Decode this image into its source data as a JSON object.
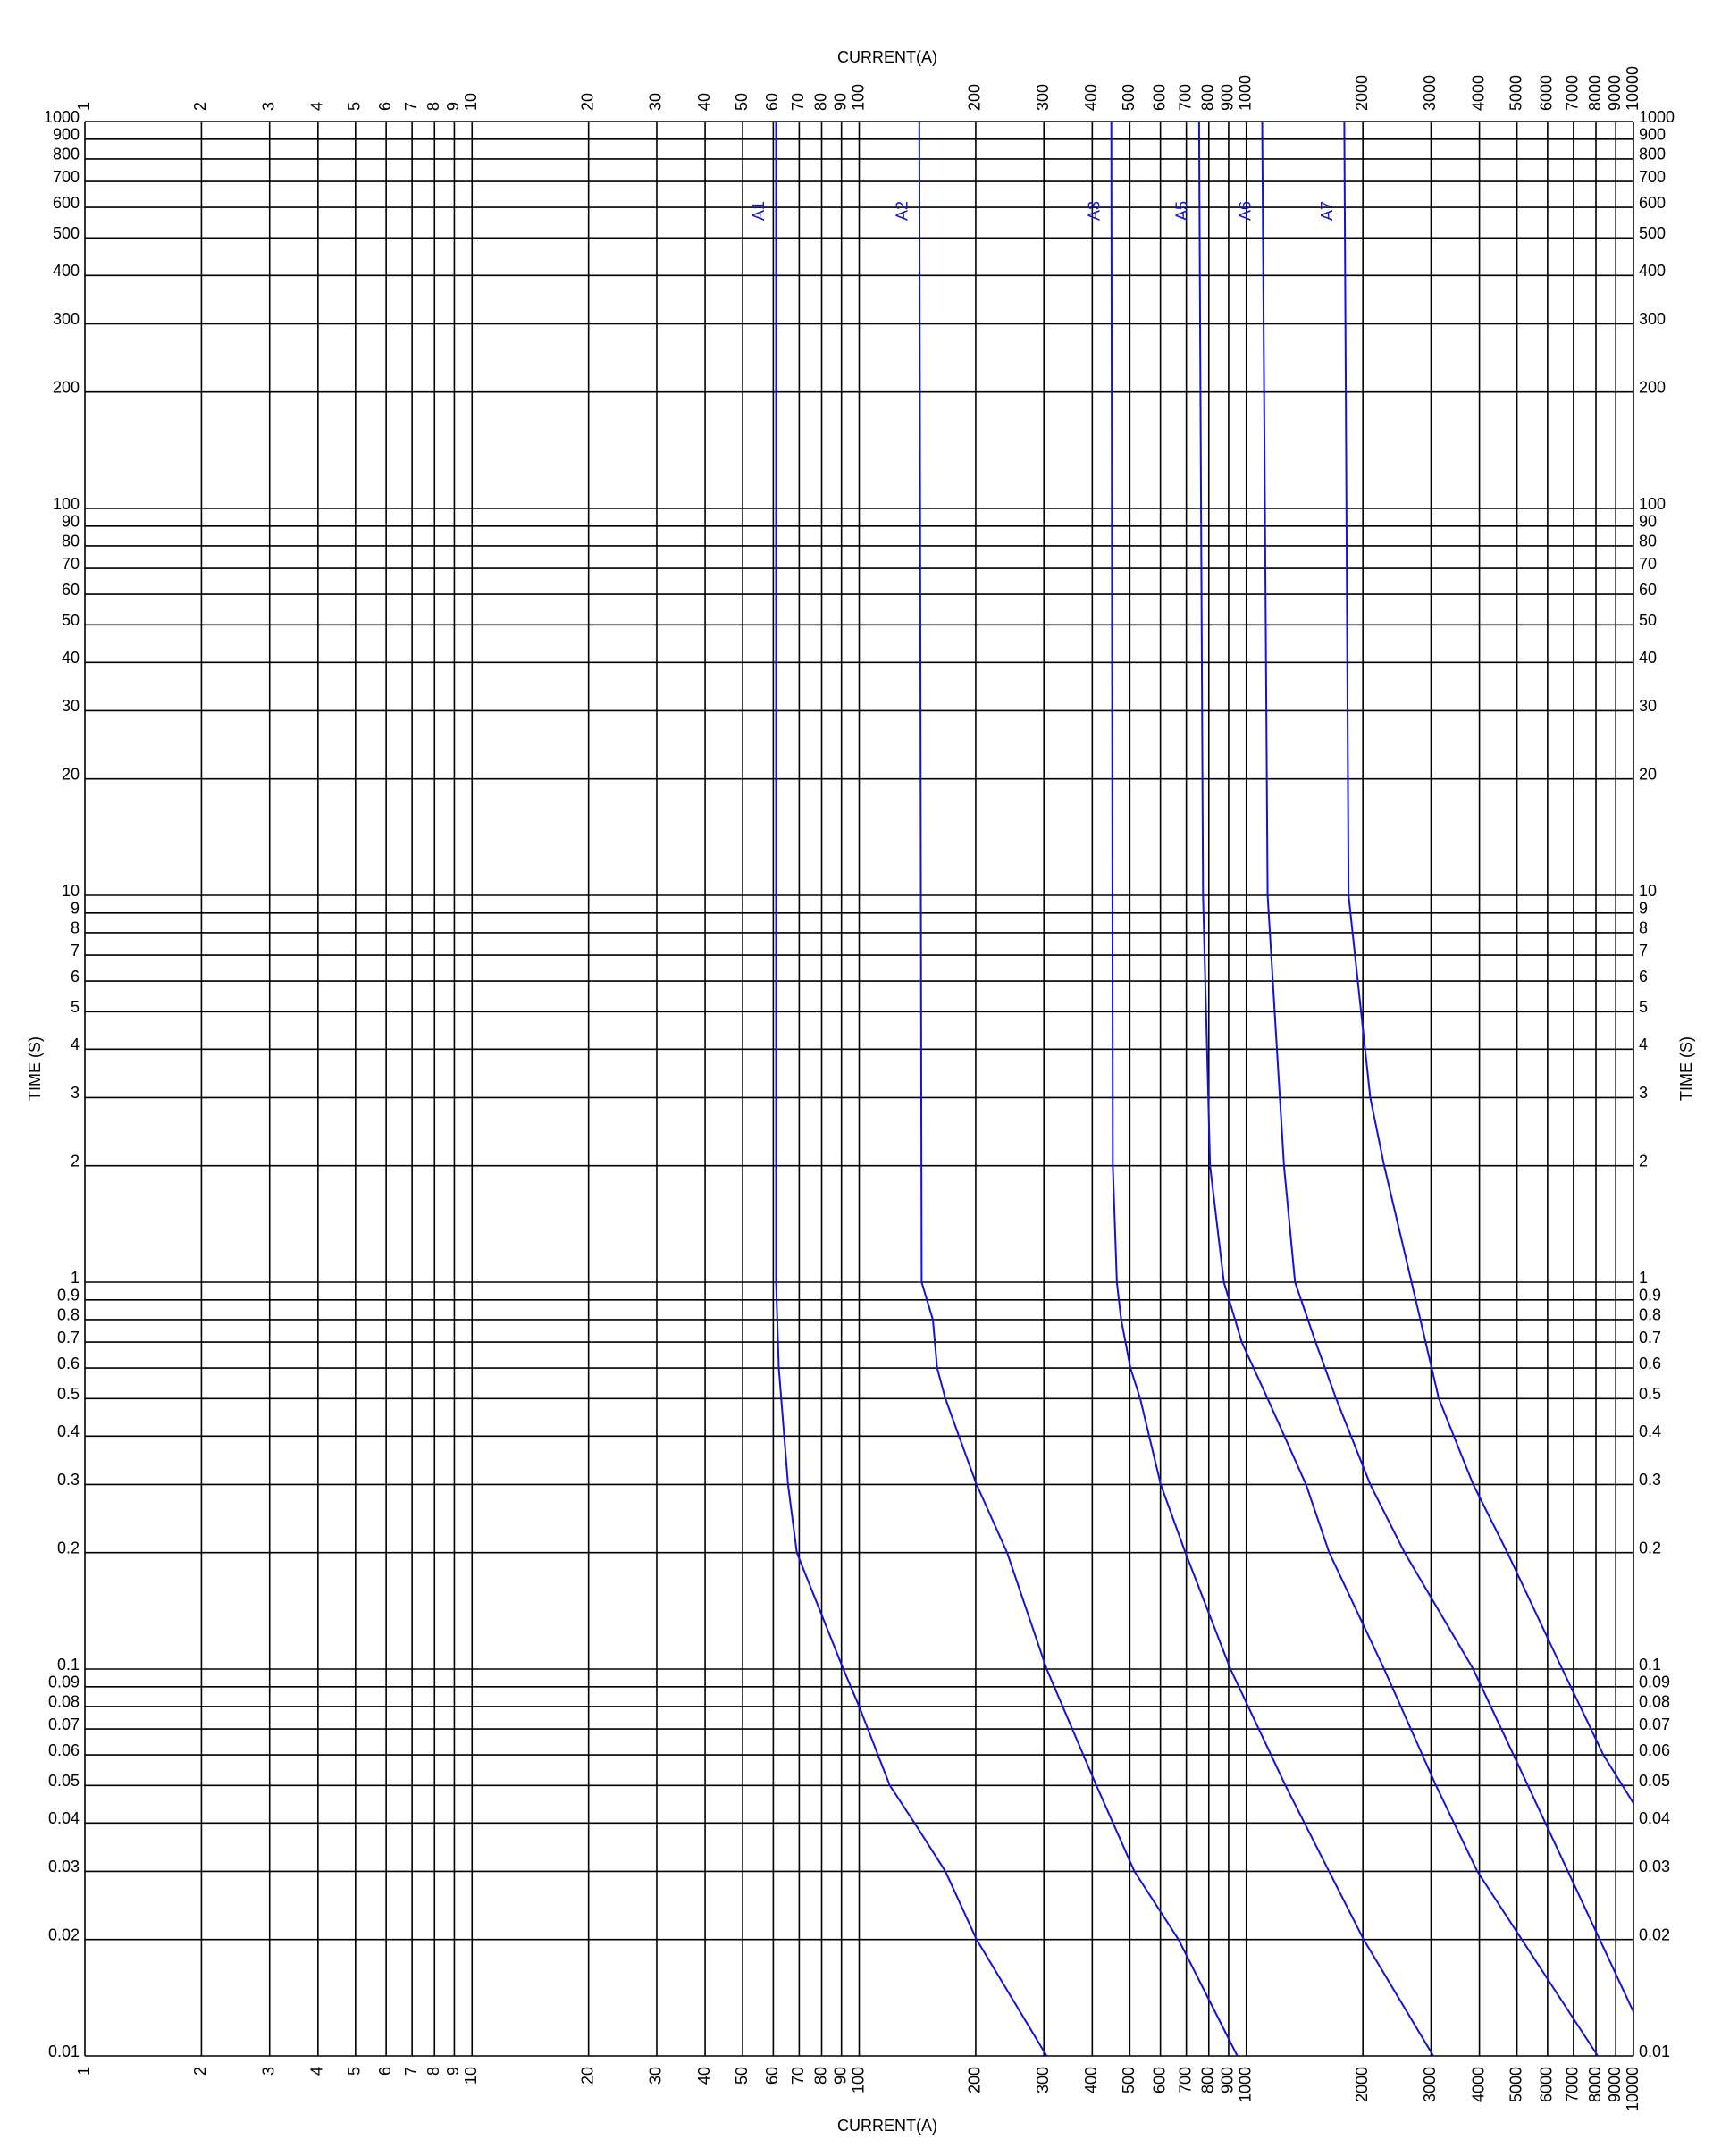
{
  "chart_data": {
    "type": "line",
    "x_label": "CURRENT(A)",
    "y_label": "TIME (S)",
    "xscale": "log",
    "yscale": "log",
    "grid": true,
    "xlim": [
      1,
      10000
    ],
    "ylim": [
      0.01,
      1000
    ],
    "xticks": [
      1,
      2,
      3,
      4,
      5,
      6,
      7,
      8,
      9,
      10,
      20,
      30,
      40,
      50,
      60,
      70,
      80,
      90,
      100,
      200,
      300,
      400,
      500,
      600,
      700,
      800,
      900,
      1000,
      2000,
      3000,
      4000,
      5000,
      6000,
      7000,
      8000,
      9000,
      10000
    ],
    "yticks": [
      0.01,
      0.02,
      0.03,
      0.04,
      0.05,
      0.06,
      0.07,
      0.08,
      0.09,
      0.1,
      0.2,
      0.3,
      0.4,
      0.5,
      0.6,
      0.7,
      0.8,
      0.9,
      1,
      2,
      3,
      4,
      5,
      6,
      7,
      8,
      9,
      10,
      20,
      30,
      40,
      50,
      60,
      70,
      80,
      90,
      100,
      200,
      300,
      400,
      500,
      600,
      700,
      800,
      900,
      1000
    ],
    "series": [
      {
        "name": "A1",
        "color": "#1414d2",
        "x": [
          61,
          61,
          62,
          65.5,
          69,
          91,
          100,
          120,
          139,
          167,
          201,
          305
        ],
        "values": [
          1000,
          1,
          0.6,
          0.3,
          0.2,
          0.1,
          0.08,
          0.05,
          0.04,
          0.03,
          0.02,
          0.01
        ]
      },
      {
        "name": "A2",
        "color": "#1414d2",
        "x": [
          143,
          145,
          155,
          159,
          167,
          181,
          201,
          241,
          305,
          410,
          514,
          668,
          948
        ],
        "values": [
          1000,
          1,
          0.8,
          0.6,
          0.5,
          0.4,
          0.3,
          0.2,
          0.1,
          0.05,
          0.03,
          0.02,
          0.01
        ]
      },
      {
        "name": "A3",
        "color": "#1414d2",
        "x": [
          448,
          452,
          463,
          475,
          502,
          532,
          601,
          696,
          910,
          1262,
          2009,
          3041
        ],
        "values": [
          1000,
          2,
          1,
          0.8,
          0.6,
          0.5,
          0.3,
          0.2,
          0.1,
          0.05,
          0.02,
          0.01
        ]
      },
      {
        "name": "A5",
        "color": "#1414d2",
        "x": [
          755,
          773,
          806,
          875,
          973,
          1135,
          1426,
          1637,
          2270,
          3090,
          3950,
          8090
        ],
        "values": [
          1000,
          10,
          2,
          1,
          0.7,
          0.5,
          0.3,
          0.2,
          0.1,
          0.05,
          0.03,
          0.01
        ]
      },
      {
        "name": "A6",
        "color": "#1414d2",
        "x": [
          1099,
          1135,
          1251,
          1336,
          1510,
          1706,
          2090,
          2563,
          3855,
          5337,
          10000
        ],
        "values": [
          1000,
          10,
          2,
          1,
          0.7,
          0.5,
          0.3,
          0.2,
          0.1,
          0.05,
          0.013
        ]
      },
      {
        "name": "A7",
        "color": "#1414d2",
        "x": [
          1791,
          1837,
          2090,
          2270,
          2672,
          3142,
          3855,
          4725,
          6547,
          8360,
          10000
        ],
        "values": [
          1000,
          10,
          3,
          2,
          1,
          0.5,
          0.3,
          0.2,
          0.1,
          0.06,
          0.045
        ]
      }
    ]
  }
}
